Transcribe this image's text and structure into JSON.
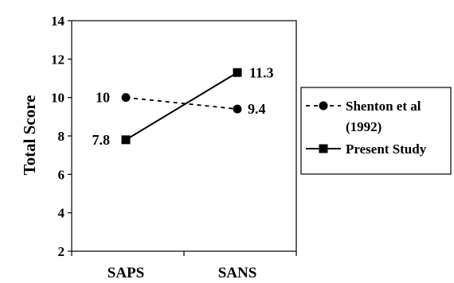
{
  "chart_data": {
    "type": "line",
    "categories": [
      "SAPS",
      "SANS"
    ],
    "ylabel": "Total Score",
    "xlabel": "",
    "ylim": [
      2,
      14
    ],
    "yticks": [
      2,
      4,
      6,
      8,
      10,
      12,
      14
    ],
    "grid": false,
    "legend_position": "right",
    "series": [
      {
        "name": "Shenton et al (1992)",
        "legend_lines": [
          "Shenton et al",
          "(1992)"
        ],
        "values": [
          10,
          9.4
        ],
        "labels": [
          "10",
          "9.4"
        ],
        "marker": "circle",
        "line_style": "dashed",
        "color": "#000000"
      },
      {
        "name": "Present Study",
        "legend_lines": [
          "Present Study"
        ],
        "values": [
          7.8,
          11.3
        ],
        "labels": [
          "7.8",
          "11.3"
        ],
        "marker": "square",
        "line_style": "solid",
        "color": "#000000"
      }
    ]
  }
}
